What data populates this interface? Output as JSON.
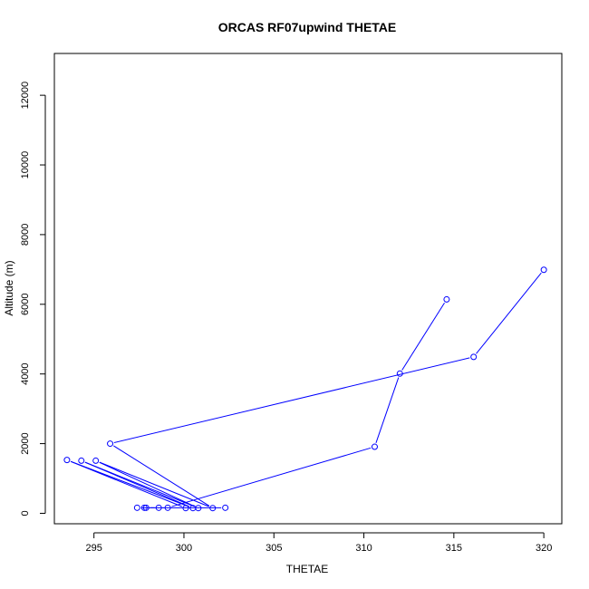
{
  "chart_data": {
    "type": "line",
    "title": "ORCAS RF07upwind THETAE",
    "xlabel": "THETAE",
    "ylabel": "Altitude (m)",
    "xlim": [
      292.8,
      321.0
    ],
    "ylim": [
      -300,
      13200
    ],
    "xticks": [
      295,
      300,
      305,
      310,
      315,
      320
    ],
    "yticks": [
      0,
      2000,
      4000,
      6000,
      8000,
      10000,
      12000
    ],
    "grid": false,
    "legend": "none",
    "colors": {
      "series": "#0000ff",
      "axis": "#000000",
      "background": "#ffffff"
    },
    "series": [
      {
        "style": "line-and-points",
        "x": [
          300.1,
          293.5,
          300.5,
          294.3,
          300.8,
          295.1,
          301.6,
          295.9,
          316.1,
          320.0
        ],
        "y": [
          150,
          1530,
          150,
          1510,
          150,
          1510,
          150,
          2000,
          4490,
          6990
        ]
      },
      {
        "style": "line-and-points",
        "x": [
          302.3,
          297.4,
          297.8,
          297.9,
          298.6,
          299.1,
          310.6,
          312.0,
          314.6
        ],
        "y": [
          160,
          160,
          160,
          160,
          160,
          160,
          1910,
          4010,
          6140
        ]
      }
    ]
  }
}
